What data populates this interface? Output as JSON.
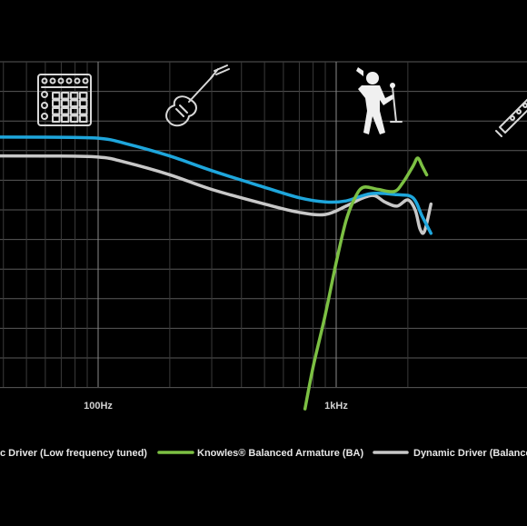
{
  "chart_data": {
    "type": "line",
    "xscale": "log",
    "xlim": [
      20,
      2500
    ],
    "x_ticks": [
      {
        "value": 100,
        "label": "100Hz"
      },
      {
        "value": 1000,
        "label": "1kHz"
      }
    ],
    "grid": true,
    "legend_position": "bottom",
    "icons": [
      "drum-machine-icon",
      "electric-guitar-icon",
      "singer-icon",
      "flute-icon"
    ],
    "series": [
      {
        "name": "Dynamic Driver (Low frequency tuned)",
        "legend_label": "c Driver (Low frequency tuned)",
        "color": "#1ea6dc",
        "points": [
          [
            20,
            5.0
          ],
          [
            60,
            5.0
          ],
          [
            100,
            4.95
          ],
          [
            130,
            4.7
          ],
          [
            200,
            4.1
          ],
          [
            300,
            3.4
          ],
          [
            500,
            2.6
          ],
          [
            700,
            2.1
          ],
          [
            900,
            1.9
          ],
          [
            1100,
            1.95
          ],
          [
            1400,
            2.3
          ],
          [
            1800,
            2.25
          ],
          [
            2100,
            2.1
          ],
          [
            2300,
            1.2
          ],
          [
            2500,
            0.4
          ]
        ]
      },
      {
        "name": "Knowles® Balanced Armature (BA)",
        "legend_label": "Knowles® Balanced Armature (BA)",
        "color": "#7cc043",
        "points": [
          [
            740,
            -8.0
          ],
          [
            800,
            -6.0
          ],
          [
            900,
            -3.5
          ],
          [
            1000,
            -1.0
          ],
          [
            1100,
            1.0
          ],
          [
            1200,
            2.1
          ],
          [
            1300,
            2.6
          ],
          [
            1500,
            2.5
          ],
          [
            1750,
            2.4
          ],
          [
            1900,
            2.8
          ],
          [
            2100,
            3.6
          ],
          [
            2200,
            4.0
          ],
          [
            2300,
            3.6
          ],
          [
            2400,
            3.2
          ]
        ]
      },
      {
        "name": "Dynamic Driver (Balanced)",
        "legend_label": "Dynamic Driver (Balance",
        "color": "#c8c8c8",
        "points": [
          [
            20,
            4.1
          ],
          [
            60,
            4.1
          ],
          [
            100,
            4.05
          ],
          [
            130,
            3.8
          ],
          [
            200,
            3.2
          ],
          [
            300,
            2.5
          ],
          [
            500,
            1.8
          ],
          [
            700,
            1.4
          ],
          [
            900,
            1.3
          ],
          [
            1100,
            1.7
          ],
          [
            1300,
            2.1
          ],
          [
            1450,
            2.2
          ],
          [
            1600,
            1.9
          ],
          [
            1800,
            1.7
          ],
          [
            2000,
            2.0
          ],
          [
            2150,
            1.5
          ],
          [
            2250,
            0.6
          ],
          [
            2350,
            0.5
          ],
          [
            2500,
            1.8
          ]
        ]
      }
    ]
  }
}
